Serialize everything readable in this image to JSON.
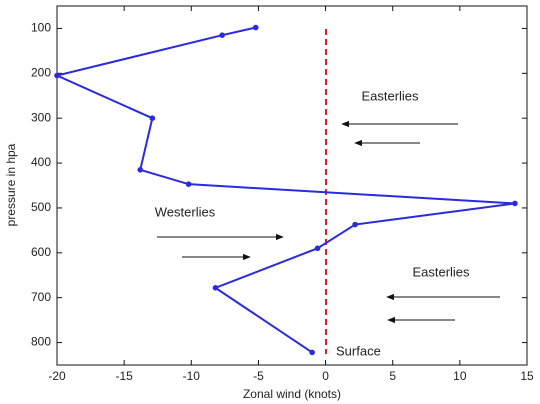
{
  "chart_data": {
    "type": "line",
    "x_label": "Zonal wind (knots)",
    "y_label": "pressure in hpa",
    "x": [
      -5.2,
      -7.7,
      -20,
      -12.9,
      -13.8,
      -10.2,
      14.1,
      2.2,
      -0.6,
      -8.2,
      -1
    ],
    "series": [
      {
        "color": "#2a2ae0",
        "values": [
          98,
          115,
          205,
          300,
          415,
          447,
          490,
          537,
          590,
          678,
          822
        ]
      }
    ],
    "xlim": [
      -20,
      15
    ],
    "xticks": [
      -20,
      -15,
      -10,
      -5,
      0,
      5,
      10,
      15
    ],
    "ylim": [
      50,
      850
    ],
    "yticks": [
      100,
      200,
      300,
      400,
      500,
      600,
      700,
      800
    ],
    "y_reversed": true,
    "grid": false,
    "annotations": [
      "Easterlies",
      "Westerlies",
      "Easterlies",
      "Surface"
    ]
  }
}
